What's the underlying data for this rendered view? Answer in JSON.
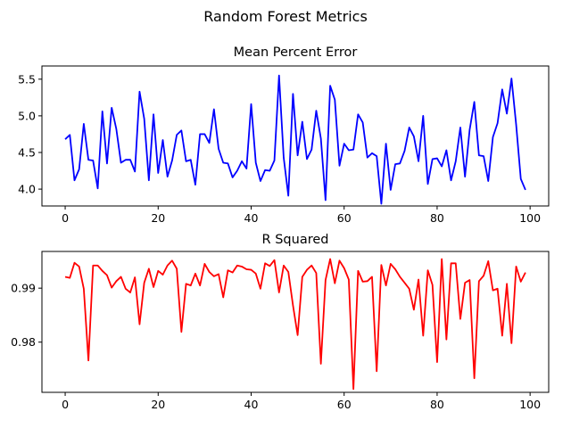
{
  "figure": {
    "suptitle": "Random Forest Metrics"
  },
  "chart_data": [
    {
      "type": "line",
      "title": "Mean Percent Error",
      "xlabel": "",
      "ylabel": "",
      "xlim": [
        -5,
        104
      ],
      "ylim": [
        3.77,
        5.68
      ],
      "xticks": [
        0,
        20,
        40,
        60,
        80,
        100
      ],
      "yticks": [
        4.0,
        4.5,
        5.0,
        5.5
      ],
      "ytick_labels": [
        "4.0",
        "4.5",
        "5.0",
        "5.5"
      ],
      "grid": false,
      "color": "#0000ff",
      "x": [
        0,
        1,
        2,
        3,
        4,
        5,
        6,
        7,
        8,
        9,
        10,
        11,
        12,
        13,
        14,
        15,
        16,
        17,
        18,
        19,
        20,
        21,
        22,
        23,
        24,
        25,
        26,
        27,
        28,
        29,
        30,
        31,
        32,
        33,
        34,
        35,
        36,
        37,
        38,
        39,
        40,
        41,
        42,
        43,
        44,
        45,
        46,
        47,
        48,
        49,
        50,
        51,
        52,
        53,
        54,
        55,
        56,
        57,
        58,
        59,
        60,
        61,
        62,
        63,
        64,
        65,
        66,
        67,
        68,
        69,
        70,
        71,
        72,
        73,
        74,
        75,
        76,
        77,
        78,
        79,
        80,
        81,
        82,
        83,
        84,
        85,
        86,
        87,
        88,
        89,
        90,
        91,
        92,
        93,
        94,
        95,
        96,
        97,
        98,
        99
      ],
      "values": [
        4.68,
        4.74,
        4.12,
        4.27,
        4.89,
        4.4,
        4.39,
        4.01,
        5.06,
        4.35,
        5.11,
        4.82,
        4.36,
        4.4,
        4.4,
        4.24,
        5.33,
        4.96,
        4.12,
        5.02,
        4.22,
        4.67,
        4.17,
        4.39,
        4.74,
        4.8,
        4.38,
        4.4,
        4.06,
        4.75,
        4.75,
        4.63,
        5.09,
        4.55,
        4.36,
        4.35,
        4.16,
        4.25,
        4.38,
        4.28,
        5.16,
        4.36,
        4.11,
        4.26,
        4.25,
        4.39,
        5.55,
        4.43,
        3.91,
        5.3,
        4.46,
        4.92,
        4.41,
        4.54,
        5.07,
        4.69,
        3.85,
        5.41,
        5.22,
        4.32,
        4.62,
        4.53,
        4.54,
        5.02,
        4.91,
        4.43,
        4.49,
        4.45,
        3.8,
        4.62,
        3.99,
        4.34,
        4.35,
        4.52,
        4.84,
        4.72,
        4.38,
        5.0,
        4.07,
        4.41,
        4.42,
        4.31,
        4.53,
        4.12,
        4.38,
        4.84,
        4.17,
        4.81,
        5.19,
        4.46,
        4.45,
        4.11,
        4.71,
        4.9,
        5.36,
        5.03,
        5.51,
        4.88,
        4.14,
        3.99
      ]
    },
    {
      "type": "line",
      "title": "R Squared",
      "xlabel": "",
      "ylabel": "",
      "xlim": [
        -5,
        104
      ],
      "ylim": [
        0.9707,
        0.9968
      ],
      "xticks": [
        0,
        20,
        40,
        60,
        80,
        100
      ],
      "yticks": [
        0.98,
        0.99
      ],
      "ytick_labels": [
        "0.98",
        "0.99"
      ],
      "grid": false,
      "color": "#ff0000",
      "x": [
        0,
        1,
        2,
        3,
        4,
        5,
        6,
        7,
        8,
        9,
        10,
        11,
        12,
        13,
        14,
        15,
        16,
        17,
        18,
        19,
        20,
        21,
        22,
        23,
        24,
        25,
        26,
        27,
        28,
        29,
        30,
        31,
        32,
        33,
        34,
        35,
        36,
        37,
        38,
        39,
        40,
        41,
        42,
        43,
        44,
        45,
        46,
        47,
        48,
        49,
        50,
        51,
        52,
        53,
        54,
        55,
        56,
        57,
        58,
        59,
        60,
        61,
        62,
        63,
        64,
        65,
        66,
        67,
        68,
        69,
        70,
        71,
        72,
        73,
        74,
        75,
        76,
        77,
        78,
        79,
        80,
        81,
        82,
        83,
        84,
        85,
        86,
        87,
        88,
        89,
        90,
        91,
        92,
        93,
        94,
        95,
        96,
        97,
        98,
        99
      ],
      "values": [
        0.9921,
        0.9919,
        0.9947,
        0.994,
        0.9899,
        0.9766,
        0.9942,
        0.9942,
        0.9932,
        0.9924,
        0.9901,
        0.9913,
        0.9921,
        0.9899,
        0.9892,
        0.992,
        0.9833,
        0.991,
        0.9936,
        0.9902,
        0.9932,
        0.9925,
        0.9942,
        0.9951,
        0.9936,
        0.9819,
        0.9908,
        0.9905,
        0.9927,
        0.9905,
        0.9945,
        0.993,
        0.9922,
        0.9926,
        0.9883,
        0.9933,
        0.9929,
        0.9942,
        0.994,
        0.9935,
        0.9934,
        0.9927,
        0.9899,
        0.9946,
        0.9941,
        0.9952,
        0.9892,
        0.9942,
        0.993,
        0.9868,
        0.9813,
        0.9921,
        0.9934,
        0.9942,
        0.9928,
        0.976,
        0.9915,
        0.9954,
        0.9909,
        0.9951,
        0.9937,
        0.9916,
        0.9713,
        0.9932,
        0.9912,
        0.9913,
        0.9921,
        0.9746,
        0.9943,
        0.9905,
        0.9945,
        0.9935,
        0.9921,
        0.991,
        0.9899,
        0.986,
        0.9916,
        0.9812,
        0.9933,
        0.9906,
        0.9763,
        0.9954,
        0.9805,
        0.9946,
        0.9946,
        0.9843,
        0.991,
        0.9915,
        0.9733,
        0.9913,
        0.9923,
        0.995,
        0.9896,
        0.9899,
        0.9812,
        0.9908,
        0.9798,
        0.994,
        0.9912,
        0.9929
      ]
    }
  ]
}
